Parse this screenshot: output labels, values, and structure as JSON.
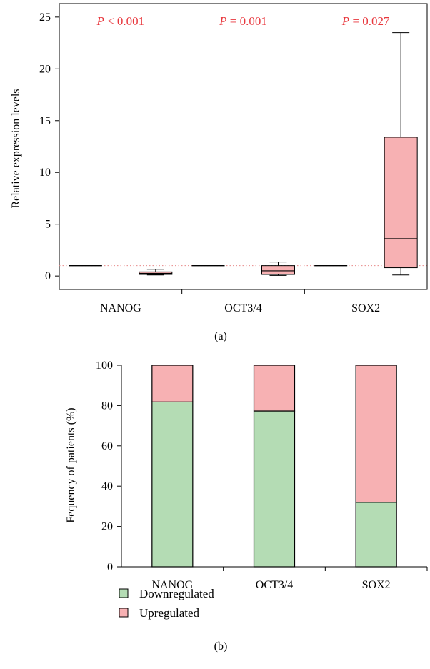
{
  "chart_data": [
    {
      "type": "box",
      "panel_label": "(a)",
      "ylabel": "Relative expression levels",
      "ylim": [
        -1.3,
        26.3
      ],
      "yticks": [
        0,
        5,
        10,
        15,
        20,
        25
      ],
      "categories": [
        "NANOG",
        "OCT3/4",
        "SOX2"
      ],
      "reference_line": 1,
      "p_values": [
        {
          "prefix": "P",
          "text": " < 0.001"
        },
        {
          "prefix": "P",
          "text": " = 0.001"
        },
        {
          "prefix": "P",
          "text": " = 0.027"
        }
      ],
      "control_level": [
        1,
        1,
        1
      ],
      "boxes": [
        {
          "min": 0.1,
          "q1": 0.15,
          "median": 0.25,
          "q3": 0.4,
          "max": 0.65
        },
        {
          "min": 0.05,
          "q1": 0.15,
          "median": 0.5,
          "q3": 1.0,
          "max": 1.35
        },
        {
          "min": 0.1,
          "q1": 0.8,
          "median": 3.6,
          "q3": 13.4,
          "max": 23.5
        }
      ],
      "colors": {
        "box_fill": "#f7b1b3",
        "p_value": "#e8373d",
        "reference_line": "#e88a8a"
      }
    },
    {
      "type": "stacked_bar",
      "panel_label": "(b)",
      "ylabel": "Fequency of patients (%)",
      "ylim": [
        0,
        100
      ],
      "yticks": [
        0,
        20,
        40,
        60,
        80,
        100
      ],
      "categories": [
        "NANOG",
        "OCT3/4",
        "SOX2"
      ],
      "series": [
        {
          "name": "Downregulated",
          "color": "#b4dcb4",
          "values": [
            81.8,
            77.3,
            32.0
          ]
        },
        {
          "name": "Upregulated",
          "color": "#f7b1b3",
          "values": [
            18.2,
            22.7,
            68.0
          ]
        }
      ],
      "legend_position": "bottom-left"
    }
  ]
}
